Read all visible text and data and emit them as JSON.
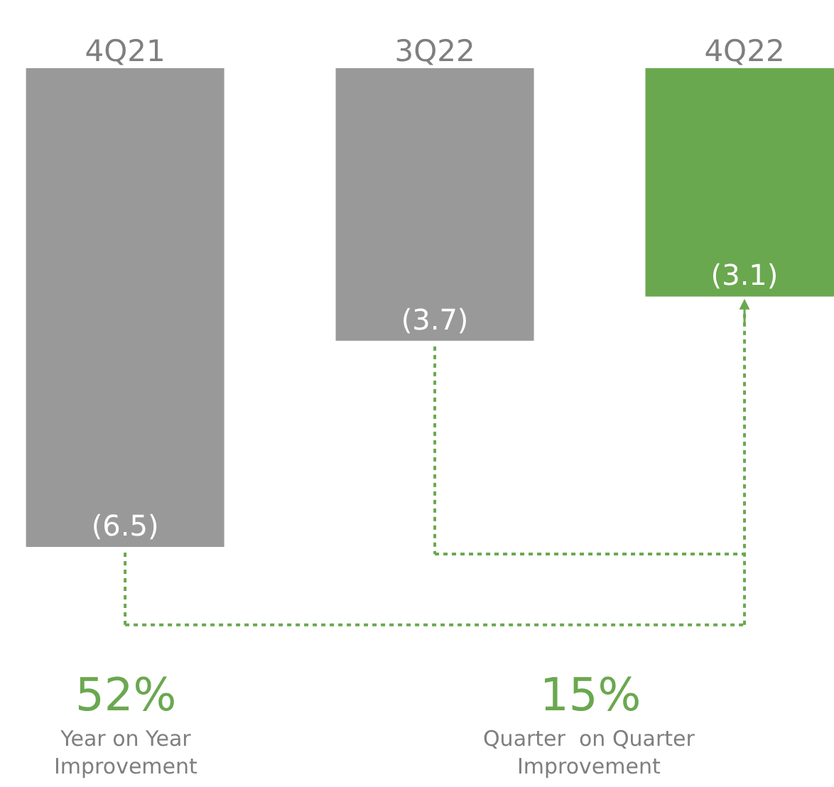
{
  "chart_data": {
    "type": "bar",
    "categories": [
      "4Q21",
      "3Q22",
      "4Q22"
    ],
    "values": [
      -6.5,
      -3.7,
      -3.1
    ],
    "colors": [
      "#999999",
      "#999999",
      "#6aa84f"
    ],
    "value_labels": [
      "(6.5)",
      "(3.7)",
      "(3.1)"
    ],
    "annotations": [
      "52%",
      "Year on Year Improvement",
      "15%",
      "Quarter  on Quarter Improvement"
    ]
  }
}
